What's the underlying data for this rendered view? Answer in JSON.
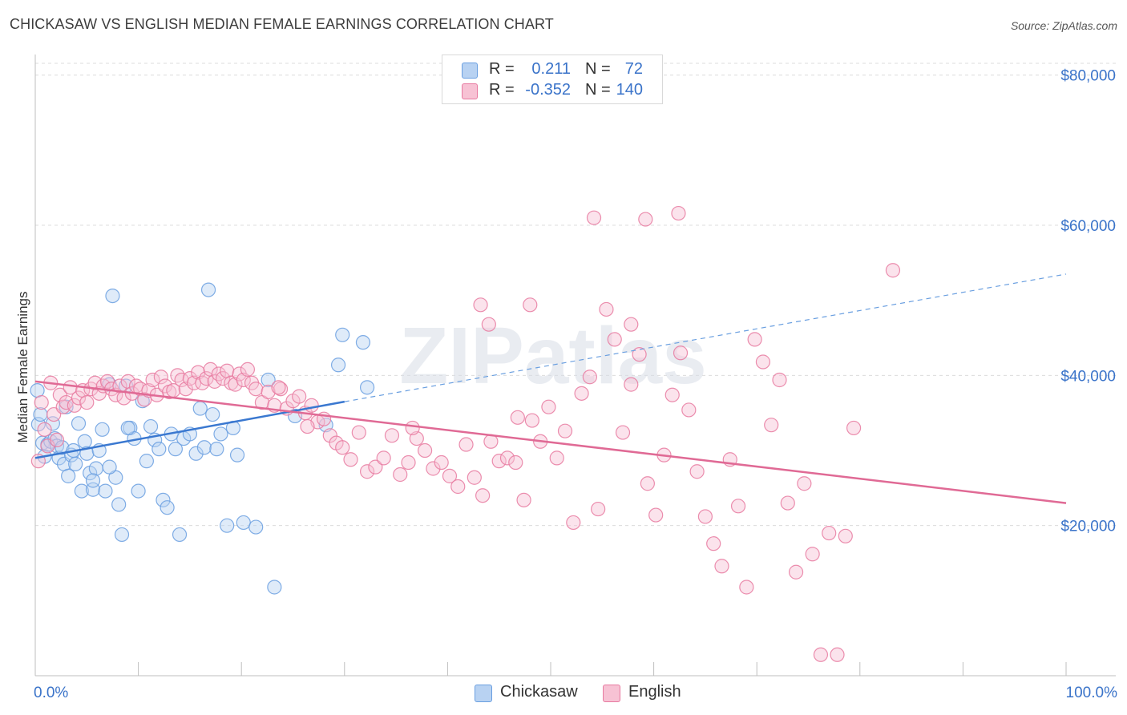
{
  "title": "CHICKASAW VS ENGLISH MEDIAN FEMALE EARNINGS CORRELATION CHART",
  "source": "Source: ZipAtlas.com",
  "watermark": "ZIPatlas",
  "legend_top": {
    "rows": [
      {
        "r_label": "R =",
        "r_value": "0.211",
        "n_label": "N =",
        "n_value": "72",
        "color": "#a8c8f0"
      },
      {
        "r_label": "R =",
        "r_value": "-0.352",
        "n_label": "N =",
        "n_value": "140",
        "color": "#f5b8cc"
      }
    ]
  },
  "legend_bottom": [
    {
      "label": "Chickasaw",
      "color": "#a8c8f0"
    },
    {
      "label": "English",
      "color": "#f5b8cc"
    }
  ],
  "chart_data": {
    "type": "scatter",
    "title": "CHICKASAW VS ENGLISH MEDIAN FEMALE EARNINGS CORRELATION CHART",
    "xlabel": "",
    "ylabel": "Median Female Earnings",
    "x_tick_labels": [
      "0.0%",
      "100.0%"
    ],
    "y_tick_labels": [
      "$20,000",
      "$40,000",
      "$60,000",
      "$80,000"
    ],
    "y_ticks": [
      20000,
      40000,
      60000,
      80000
    ],
    "xlim": [
      0,
      100
    ],
    "ylim": [
      0,
      82000
    ],
    "grid": "horizontal dashed",
    "series": [
      {
        "name": "Chickasaw",
        "color": "#6a9fe0",
        "fill": "#b8d2f2",
        "trend": {
          "x1": 0,
          "y1": 29000,
          "x2": 30,
          "y2": 36500,
          "dashed_to_x": 100,
          "dashed_to_y": 53500
        },
        "points": [
          [
            0.2,
            38000
          ],
          [
            0.3,
            33500
          ],
          [
            0.5,
            34800
          ],
          [
            0.7,
            31000
          ],
          [
            0.9,
            29200
          ],
          [
            1.2,
            30800
          ],
          [
            1.5,
            31200
          ],
          [
            1.7,
            33600
          ],
          [
            1.9,
            31600
          ],
          [
            2.1,
            30600
          ],
          [
            2.3,
            29000
          ],
          [
            2.6,
            30400
          ],
          [
            2.8,
            28200
          ],
          [
            3.0,
            35800
          ],
          [
            3.2,
            26600
          ],
          [
            3.5,
            29400
          ],
          [
            3.7,
            30000
          ],
          [
            3.9,
            28200
          ],
          [
            4.2,
            33600
          ],
          [
            4.5,
            24600
          ],
          [
            4.8,
            31200
          ],
          [
            5.0,
            29600
          ],
          [
            5.3,
            27000
          ],
          [
            5.6,
            24800
          ],
          [
            5.9,
            27600
          ],
          [
            6.2,
            30000
          ],
          [
            6.5,
            32800
          ],
          [
            6.8,
            24600
          ],
          [
            7.2,
            38800
          ],
          [
            7.5,
            50600
          ],
          [
            7.8,
            26400
          ],
          [
            8.1,
            22800
          ],
          [
            8.4,
            18800
          ],
          [
            8.8,
            38600
          ],
          [
            9.2,
            33000
          ],
          [
            9.6,
            31600
          ],
          [
            10.0,
            24600
          ],
          [
            10.4,
            36600
          ],
          [
            10.8,
            28600
          ],
          [
            11.2,
            33200
          ],
          [
            11.6,
            31400
          ],
          [
            12.0,
            30200
          ],
          [
            12.4,
            23400
          ],
          [
            12.8,
            22400
          ],
          [
            13.2,
            32200
          ],
          [
            13.6,
            30200
          ],
          [
            14.0,
            18800
          ],
          [
            14.4,
            31600
          ],
          [
            15.0,
            32200
          ],
          [
            15.6,
            29600
          ],
          [
            16.0,
            35600
          ],
          [
            16.4,
            30400
          ],
          [
            16.8,
            51400
          ],
          [
            17.2,
            34800
          ],
          [
            17.6,
            30200
          ],
          [
            18.0,
            32200
          ],
          [
            18.6,
            20000
          ],
          [
            19.2,
            33000
          ],
          [
            19.6,
            29400
          ],
          [
            20.2,
            20400
          ],
          [
            21.4,
            19800
          ],
          [
            22.6,
            39400
          ],
          [
            23.2,
            11800
          ],
          [
            25.2,
            34600
          ],
          [
            28.2,
            33400
          ],
          [
            29.4,
            41400
          ],
          [
            29.8,
            45400
          ],
          [
            31.8,
            44400
          ],
          [
            32.2,
            38400
          ],
          [
            5.6,
            26000
          ],
          [
            9.0,
            33000
          ],
          [
            7.2,
            27800
          ]
        ]
      },
      {
        "name": "English",
        "color": "#e77aa0",
        "fill": "#f7c2d4",
        "trend": {
          "x1": 0,
          "y1": 39200,
          "x2": 100,
          "y2": 23000
        },
        "points": [
          [
            0.3,
            28600
          ],
          [
            0.6,
            36400
          ],
          [
            0.9,
            32800
          ],
          [
            1.2,
            30600
          ],
          [
            1.5,
            39000
          ],
          [
            1.8,
            34800
          ],
          [
            2.1,
            31400
          ],
          [
            2.4,
            37400
          ],
          [
            2.7,
            35800
          ],
          [
            3.0,
            36400
          ],
          [
            3.4,
            38400
          ],
          [
            3.8,
            36000
          ],
          [
            4.2,
            37000
          ],
          [
            4.6,
            38000
          ],
          [
            5.0,
            36400
          ],
          [
            5.4,
            38200
          ],
          [
            5.8,
            39000
          ],
          [
            6.2,
            37600
          ],
          [
            6.6,
            38600
          ],
          [
            7.0,
            39200
          ],
          [
            7.4,
            38200
          ],
          [
            7.8,
            37400
          ],
          [
            8.2,
            38600
          ],
          [
            8.6,
            37000
          ],
          [
            9.0,
            39200
          ],
          [
            9.4,
            37600
          ],
          [
            9.8,
            38600
          ],
          [
            10.2,
            38200
          ],
          [
            10.6,
            36800
          ],
          [
            11.0,
            38000
          ],
          [
            11.4,
            39400
          ],
          [
            11.8,
            37400
          ],
          [
            12.2,
            39800
          ],
          [
            12.6,
            38600
          ],
          [
            13.0,
            37800
          ],
          [
            13.4,
            38000
          ],
          [
            13.8,
            40000
          ],
          [
            14.2,
            39400
          ],
          [
            14.6,
            38200
          ],
          [
            15.0,
            39600
          ],
          [
            15.4,
            39000
          ],
          [
            15.8,
            40400
          ],
          [
            16.2,
            39000
          ],
          [
            16.6,
            39600
          ],
          [
            17.0,
            40800
          ],
          [
            17.4,
            39200
          ],
          [
            17.8,
            40200
          ],
          [
            18.2,
            39600
          ],
          [
            18.6,
            40600
          ],
          [
            19.0,
            39000
          ],
          [
            19.4,
            38800
          ],
          [
            19.8,
            40200
          ],
          [
            20.2,
            39400
          ],
          [
            20.6,
            40800
          ],
          [
            21.0,
            39000
          ],
          [
            21.4,
            38200
          ],
          [
            22.0,
            36400
          ],
          [
            22.6,
            37800
          ],
          [
            23.2,
            36000
          ],
          [
            23.8,
            38200
          ],
          [
            24.4,
            35600
          ],
          [
            25.0,
            36600
          ],
          [
            25.6,
            37200
          ],
          [
            26.2,
            35000
          ],
          [
            26.8,
            36000
          ],
          [
            27.4,
            33800
          ],
          [
            28.0,
            34200
          ],
          [
            28.6,
            32000
          ],
          [
            29.2,
            31000
          ],
          [
            29.8,
            30400
          ],
          [
            30.6,
            28800
          ],
          [
            31.4,
            32400
          ],
          [
            32.2,
            27200
          ],
          [
            33.0,
            27800
          ],
          [
            33.8,
            29000
          ],
          [
            34.6,
            32000
          ],
          [
            35.4,
            26800
          ],
          [
            36.2,
            28400
          ],
          [
            37.0,
            31600
          ],
          [
            37.8,
            30000
          ],
          [
            38.6,
            27600
          ],
          [
            39.4,
            28400
          ],
          [
            40.2,
            26600
          ],
          [
            41.0,
            25200
          ],
          [
            41.8,
            30800
          ],
          [
            42.6,
            26400
          ],
          [
            43.4,
            24000
          ],
          [
            44.2,
            31200
          ],
          [
            45.0,
            28600
          ],
          [
            45.8,
            29000
          ],
          [
            46.6,
            28400
          ],
          [
            47.4,
            23400
          ],
          [
            48.2,
            34000
          ],
          [
            49.0,
            31200
          ],
          [
            49.8,
            35800
          ],
          [
            50.6,
            29000
          ],
          [
            51.4,
            32600
          ],
          [
            52.2,
            20400
          ],
          [
            53.0,
            37600
          ],
          [
            53.8,
            39800
          ],
          [
            54.6,
            22200
          ],
          [
            55.4,
            48800
          ],
          [
            56.2,
            44800
          ],
          [
            57.0,
            32400
          ],
          [
            57.8,
            38800
          ],
          [
            58.6,
            42800
          ],
          [
            59.4,
            25600
          ],
          [
            60.2,
            21400
          ],
          [
            61.0,
            29400
          ],
          [
            61.8,
            37400
          ],
          [
            62.6,
            43000
          ],
          [
            63.4,
            35400
          ],
          [
            64.2,
            27200
          ],
          [
            65.0,
            21200
          ],
          [
            65.8,
            17600
          ],
          [
            66.6,
            14600
          ],
          [
            67.4,
            28800
          ],
          [
            68.2,
            22600
          ],
          [
            69.0,
            11800
          ],
          [
            69.8,
            44800
          ],
          [
            70.6,
            41800
          ],
          [
            71.4,
            33400
          ],
          [
            72.2,
            39400
          ],
          [
            73.0,
            23000
          ],
          [
            73.8,
            13800
          ],
          [
            74.6,
            25600
          ],
          [
            75.4,
            16200
          ],
          [
            76.2,
            2800
          ],
          [
            77.0,
            19000
          ],
          [
            77.8,
            2800
          ],
          [
            78.6,
            18600
          ],
          [
            79.4,
            33000
          ],
          [
            83.2,
            54000
          ],
          [
            59.2,
            60800
          ],
          [
            54.2,
            61000
          ],
          [
            62.4,
            61600
          ],
          [
            48.0,
            49400
          ],
          [
            43.2,
            49400
          ],
          [
            44.0,
            46800
          ],
          [
            57.8,
            46800
          ],
          [
            23.6,
            38400
          ],
          [
            26.4,
            33200
          ],
          [
            36.6,
            33000
          ],
          [
            46.8,
            34400
          ]
        ]
      }
    ]
  }
}
